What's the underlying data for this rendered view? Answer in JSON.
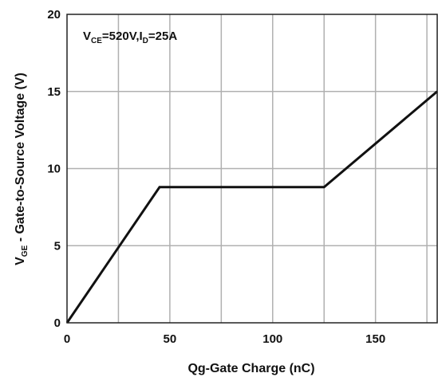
{
  "chart_data": {
    "type": "line",
    "xlabel": "Qg-Gate Charge (nC)",
    "ylabel": {
      "prefix": "V",
      "sub": "GE",
      "rest": " - Gate-to-Source Voltage (V)"
    },
    "annotation": {
      "v": "V",
      "ce_sub": "CE",
      "mid": "=520V,I",
      "d_sub": "D",
      "end": "=25A"
    },
    "xlim": [
      0,
      180
    ],
    "ylim": [
      0,
      20
    ],
    "xticks": [
      0,
      50,
      100,
      150
    ],
    "yticks": [
      0,
      5,
      10,
      15,
      20
    ],
    "xgrid": [
      25,
      50,
      75,
      100,
      125,
      150,
      175
    ],
    "ygrid": [
      5,
      10,
      15
    ],
    "grid": true,
    "series": [
      {
        "color": "#111111",
        "x": [
          0,
          45,
          125,
          180
        ],
        "y": [
          0,
          8.8,
          8.8,
          15
        ]
      }
    ]
  }
}
